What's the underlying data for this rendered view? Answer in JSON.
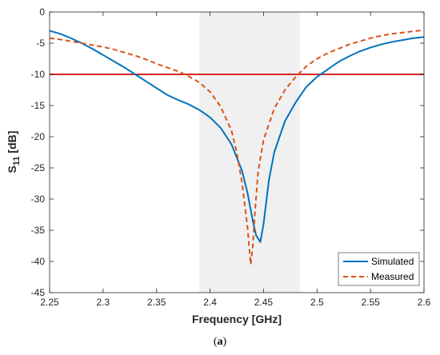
{
  "caption": {
    "open": "(",
    "label": "a",
    "close": ")"
  },
  "chart_data": {
    "type": "line",
    "xlabel": "Frequency [GHz]",
    "ylabel_main": "S",
    "ylabel_sub": "11",
    "ylabel_unit": " [dB]",
    "xlim": [
      2.25,
      2.6
    ],
    "ylim": [
      -45,
      0
    ],
    "xticks": [
      "2.25",
      "2.3",
      "2.35",
      "2.4",
      "2.45",
      "2.5",
      "2.55",
      "2.6"
    ],
    "yticks": [
      "0",
      "-5",
      "-10",
      "-15",
      "-20",
      "-25",
      "-30",
      "-35",
      "-40",
      "-45"
    ],
    "grid": false,
    "legend_position": "bottom-right",
    "shaded_band": {
      "x_start": 2.39,
      "x_end": 2.484,
      "color": "#f0f0f0"
    },
    "reference_line": {
      "y": -10,
      "color": "#d62728"
    },
    "series": [
      {
        "name": "Simulated",
        "color": "#0072bd",
        "style": "solid",
        "x": [
          2.25,
          2.26,
          2.27,
          2.28,
          2.29,
          2.3,
          2.31,
          2.32,
          2.33,
          2.34,
          2.35,
          2.36,
          2.37,
          2.38,
          2.39,
          2.4,
          2.41,
          2.42,
          2.43,
          2.435,
          2.44,
          2.443,
          2.447,
          2.45,
          2.455,
          2.46,
          2.47,
          2.48,
          2.49,
          2.5,
          2.51,
          2.52,
          2.53,
          2.54,
          2.55,
          2.56,
          2.57,
          2.58,
          2.59,
          2.6
        ],
        "y": [
          -3.0,
          -3.5,
          -4.2,
          -5.0,
          -5.9,
          -6.9,
          -7.9,
          -8.9,
          -10.0,
          -11.1,
          -12.2,
          -13.3,
          -14.1,
          -14.8,
          -15.7,
          -16.9,
          -18.6,
          -21.2,
          -25.5,
          -29.0,
          -33.5,
          -35.8,
          -36.9,
          -34.0,
          -27.0,
          -22.5,
          -17.5,
          -14.5,
          -12.0,
          -10.4,
          -9.2,
          -8.0,
          -7.1,
          -6.3,
          -5.7,
          -5.2,
          -4.8,
          -4.5,
          -4.2,
          -4.0
        ]
      },
      {
        "name": "Measured",
        "color": "#d95319",
        "style": "dashed",
        "x": [
          2.25,
          2.26,
          2.27,
          2.28,
          2.29,
          2.3,
          2.31,
          2.32,
          2.33,
          2.34,
          2.35,
          2.36,
          2.37,
          2.38,
          2.39,
          2.4,
          2.41,
          2.42,
          2.425,
          2.43,
          2.435,
          2.438,
          2.44,
          2.442,
          2.445,
          2.45,
          2.46,
          2.47,
          2.48,
          2.49,
          2.5,
          2.51,
          2.52,
          2.53,
          2.54,
          2.55,
          2.56,
          2.57,
          2.58,
          2.59,
          2.6
        ],
        "y": [
          -4.2,
          -4.4,
          -4.7,
          -5.0,
          -5.3,
          -5.6,
          -6.0,
          -6.5,
          -7.0,
          -7.6,
          -8.3,
          -8.9,
          -9.5,
          -10.3,
          -11.3,
          -12.8,
          -15.2,
          -19.0,
          -22.5,
          -27.5,
          -34.5,
          -40.5,
          -37.5,
          -32.0,
          -25.5,
          -20.5,
          -15.5,
          -12.5,
          -10.4,
          -8.7,
          -7.5,
          -6.6,
          -5.9,
          -5.2,
          -4.7,
          -4.2,
          -3.8,
          -3.5,
          -3.3,
          -3.1,
          -2.9
        ]
      }
    ]
  }
}
